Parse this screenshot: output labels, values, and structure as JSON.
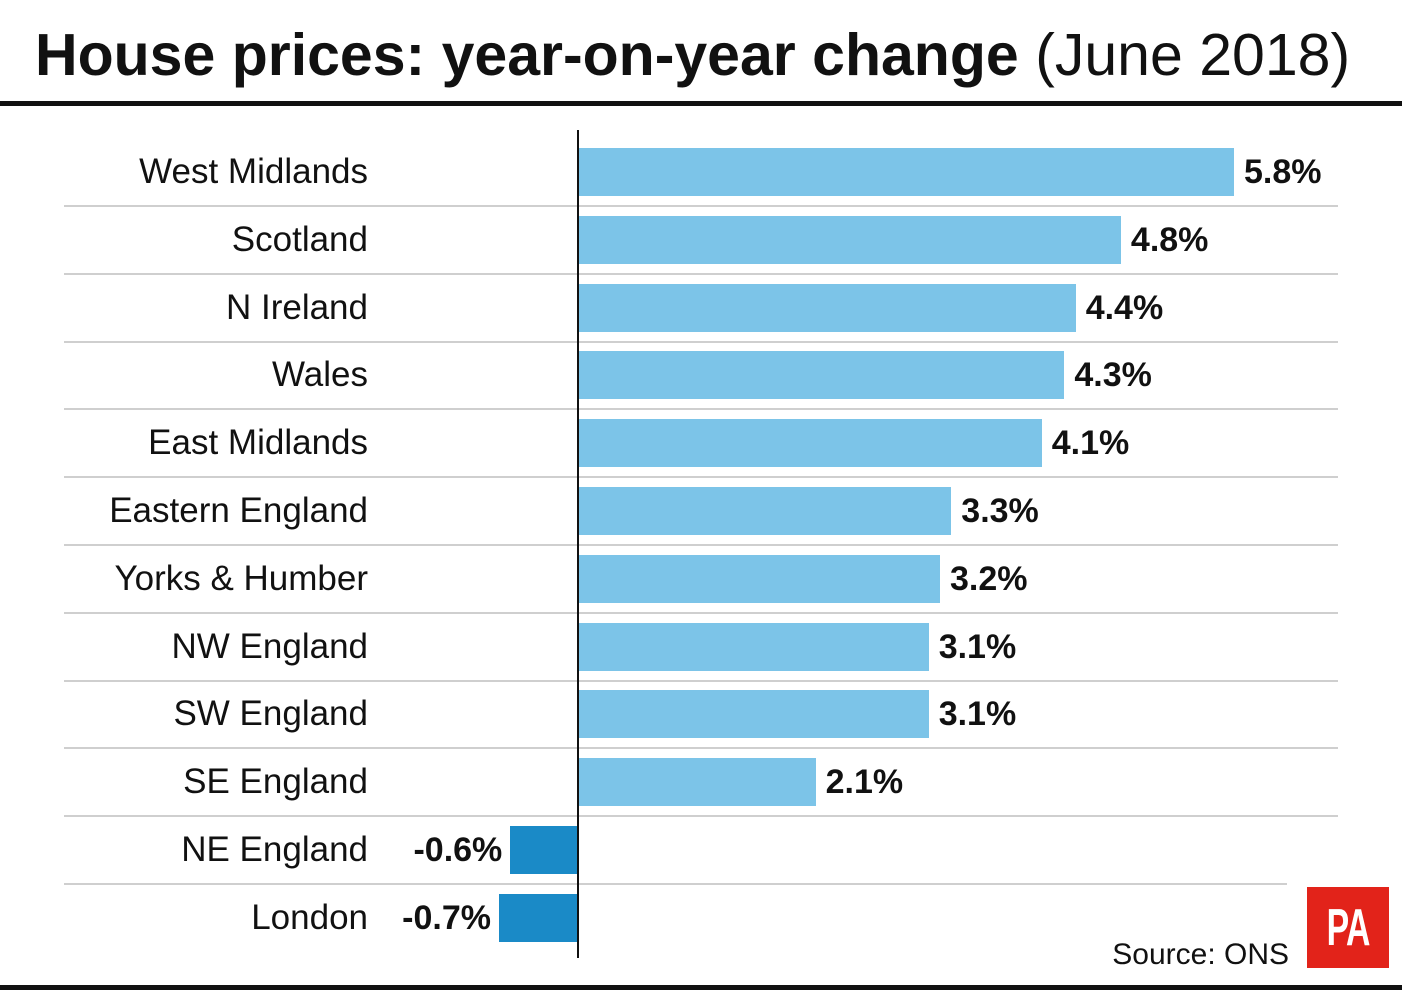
{
  "chart_data": {
    "type": "bar",
    "orientation": "horizontal",
    "title": "House prices: year-on-year change",
    "subtitle": "(June 2018)",
    "categories": [
      "West Midlands",
      "Scotland",
      "N Ireland",
      "Wales",
      "East Midlands",
      "Eastern England",
      "Yorks & Humber",
      "NW England",
      "SW England",
      "SE England",
      "NE England",
      "London"
    ],
    "values": [
      5.8,
      4.8,
      4.4,
      4.3,
      4.1,
      3.3,
      3.2,
      3.1,
      3.1,
      2.1,
      -0.6,
      -0.7
    ],
    "data_labels": [
      "5.8%",
      "4.8%",
      "4.4%",
      "4.3%",
      "4.1%",
      "3.3%",
      "3.2%",
      "3.1%",
      "3.1%",
      "2.1%",
      "-0.6%",
      "-0.7%"
    ],
    "xlim": [
      -0.7,
      5.8
    ],
    "grid": false,
    "legend": false,
    "source": "Source: ONS",
    "colors": {
      "positive_bar": "#7cc4e8",
      "negative_bar": "#1a8ac7"
    }
  },
  "branding": {
    "logo_text": "PA",
    "logo_color": "#e2231a"
  }
}
